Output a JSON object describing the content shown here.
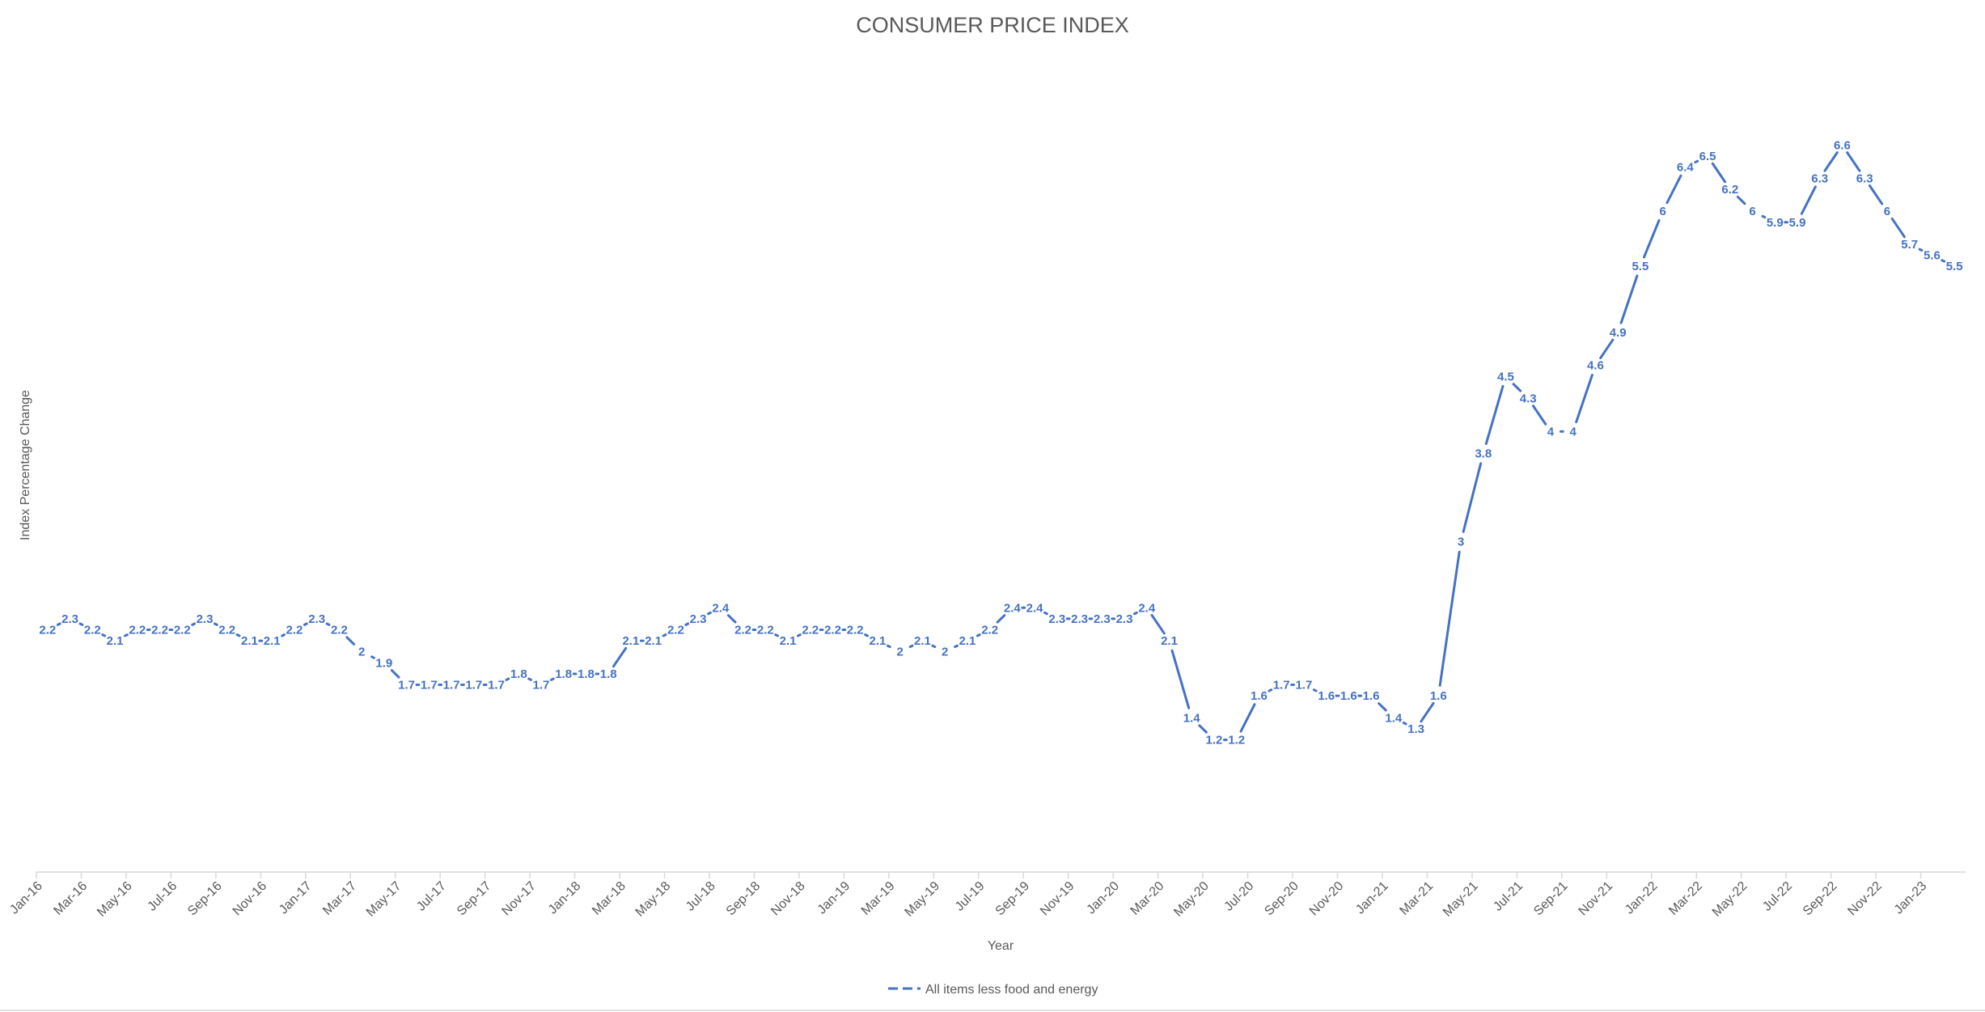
{
  "chart_data": {
    "type": "line",
    "title": "CONSUMER PRICE INDEX",
    "xlabel": "Year",
    "ylabel": "Index Percentage Change",
    "x": [
      "Jan-16",
      "Feb-16",
      "Mar-16",
      "Apr-16",
      "May-16",
      "Jun-16",
      "Jul-16",
      "Aug-16",
      "Sep-16",
      "Oct-16",
      "Nov-16",
      "Dec-16",
      "Jan-17",
      "Feb-17",
      "Mar-17",
      "Apr-17",
      "May-17",
      "Jun-17",
      "Jul-17",
      "Aug-17",
      "Sep-17",
      "Oct-17",
      "Nov-17",
      "Dec-17",
      "Jan-18",
      "Feb-18",
      "Mar-18",
      "Apr-18",
      "May-18",
      "Jun-18",
      "Jul-18",
      "Aug-18",
      "Sep-18",
      "Oct-18",
      "Nov-18",
      "Dec-18",
      "Jan-19",
      "Feb-19",
      "Mar-19",
      "Apr-19",
      "May-19",
      "Jun-19",
      "Jul-19",
      "Aug-19",
      "Sep-19",
      "Oct-19",
      "Nov-19",
      "Dec-19",
      "Jan-20",
      "Feb-20",
      "Mar-20",
      "Apr-20",
      "May-20",
      "Jun-20",
      "Jul-20",
      "Aug-20",
      "Sep-20",
      "Oct-20",
      "Nov-20",
      "Dec-20",
      "Jan-21",
      "Feb-21",
      "Mar-21",
      "Apr-21",
      "May-21",
      "Jun-21",
      "Jul-21",
      "Aug-21",
      "Sep-21",
      "Oct-21",
      "Nov-21",
      "Dec-21",
      "Jan-22",
      "Feb-22",
      "Mar-22",
      "Apr-22",
      "May-22",
      "Jun-22",
      "Jul-22",
      "Aug-22",
      "Sep-22",
      "Oct-22",
      "Nov-22",
      "Dec-22",
      "Jan-23",
      "Feb-23"
    ],
    "tick_labels": [
      "Jan-16",
      "Mar-16",
      "May-16",
      "Jul-16",
      "Sep-16",
      "Nov-16",
      "Jan-17",
      "Mar-17",
      "May-17",
      "Jul-17",
      "Sep-17",
      "Nov-17",
      "Jan-18",
      "Mar-18",
      "May-18",
      "Jul-18",
      "Sep-18",
      "Nov-18",
      "Jan-19",
      "Mar-19",
      "May-19",
      "Jul-19",
      "Sep-19",
      "Nov-19",
      "Jan-20",
      "Mar-20",
      "May-20",
      "Jul-20",
      "Sep-20",
      "Nov-20",
      "Jan-21",
      "Mar-21",
      "May-21",
      "Jul-21",
      "Sep-21",
      "Nov-21",
      "Jan-22",
      "Mar-22",
      "May-22",
      "Jul-22",
      "Sep-22",
      "Nov-22",
      "Jan-23"
    ],
    "series": [
      {
        "name": "All items less food and energy",
        "color": "#4472C4",
        "values": [
          2.2,
          2.3,
          2.2,
          2.1,
          2.2,
          2.2,
          2.2,
          2.3,
          2.2,
          2.1,
          2.1,
          2.2,
          2.3,
          2.2,
          2.0,
          1.9,
          1.7,
          1.7,
          1.7,
          1.7,
          1.7,
          1.8,
          1.7,
          1.8,
          1.8,
          1.8,
          2.1,
          2.1,
          2.2,
          2.3,
          2.4,
          2.2,
          2.2,
          2.1,
          2.2,
          2.2,
          2.2,
          2.1,
          2.0,
          2.1,
          2.0,
          2.1,
          2.2,
          2.4,
          2.4,
          2.3,
          2.3,
          2.3,
          2.3,
          2.4,
          2.1,
          1.4,
          1.2,
          1.2,
          1.6,
          1.7,
          1.7,
          1.6,
          1.6,
          1.6,
          1.4,
          1.3,
          1.6,
          3.0,
          3.8,
          4.5,
          4.3,
          4.0,
          4.0,
          4.6,
          4.9,
          5.5,
          6.0,
          6.4,
          6.5,
          6.2,
          6.0,
          5.9,
          5.9,
          6.3,
          6.6,
          6.3,
          6.0,
          5.7,
          5.6,
          5.5
        ]
      }
    ],
    "ylim": [
      0,
      7
    ],
    "grid": false,
    "data_labels": true,
    "legend_position": "bottom"
  }
}
